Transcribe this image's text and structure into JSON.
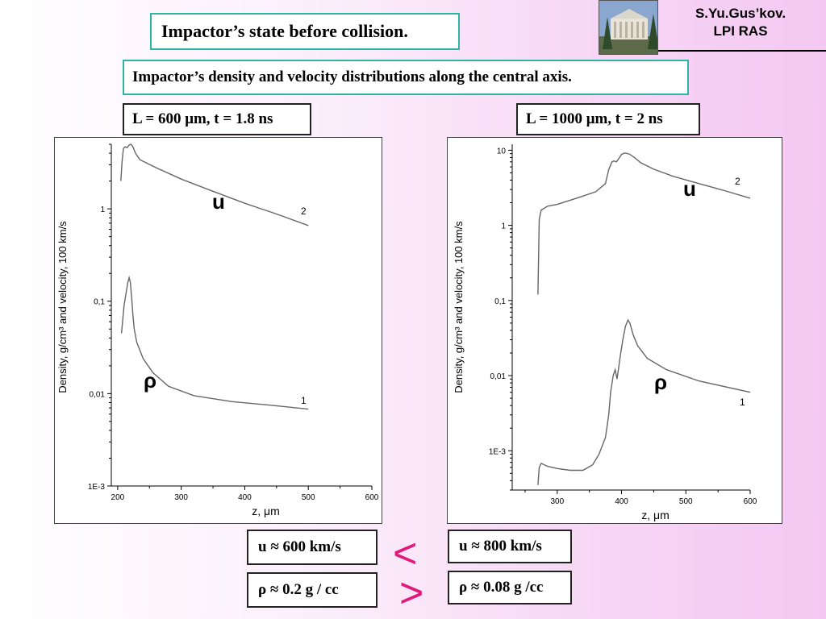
{
  "slide": {
    "title": "Impactor’s state before collision.",
    "subtitle": "Impactor’s density and velocity distributions along the central axis.",
    "author_line1": "S.Yu.Gus’kov.",
    "author_line2": "LPI RAS",
    "param_left": "L = 600 μm, t = 1.8 ns",
    "param_right": "L = 1000 μm, t = 2 ns",
    "u_left": "u ≈ 600 km/s",
    "u_right": "u ≈ 800 km/s",
    "rho_left": "ρ ≈ 0.2 g / cc",
    "rho_right": "ρ ≈ 0.08 g /cc",
    "compare_u": "<",
    "compare_rho": ">"
  },
  "colors": {
    "frame_teal": "#2fb3a3",
    "comparison": "#e0197a",
    "curve": "#666666"
  },
  "icons": {
    "logo": "building-photo-icon"
  },
  "chart_data": [
    {
      "type": "line",
      "title": "",
      "xlabel": "z, μm",
      "ylabel": "Density, g/cm³ and velocity, 100 km/s",
      "y_scale": "log",
      "xlim": [
        190,
        600
      ],
      "ylim": [
        0.001,
        5
      ],
      "xticks": [
        200,
        300,
        400,
        500,
        600
      ],
      "yticks": [
        {
          "value": 0.001,
          "label": "1E-3"
        },
        {
          "value": 0.01,
          "label": "0,01"
        },
        {
          "value": 0.1,
          "label": "0,1"
        },
        {
          "value": 1,
          "label": "1"
        }
      ],
      "series": [
        {
          "name": "1",
          "label": "ρ",
          "x": [
            206,
            210,
            213,
            216,
            218,
            220,
            222,
            224,
            226,
            230,
            240,
            255,
            280,
            320,
            380,
            440,
            500
          ],
          "y": [
            0.045,
            0.09,
            0.12,
            0.16,
            0.18,
            0.16,
            0.11,
            0.07,
            0.05,
            0.036,
            0.024,
            0.017,
            0.012,
            0.0095,
            0.0082,
            0.0075,
            0.0068
          ]
        },
        {
          "name": "2",
          "label": "u",
          "x": [
            205,
            207,
            209,
            212,
            215,
            218,
            221,
            224,
            228,
            235,
            260,
            300,
            350,
            400,
            450,
            500
          ],
          "y": [
            2.0,
            3.3,
            4.5,
            4.7,
            4.6,
            4.9,
            5.0,
            4.7,
            4.0,
            3.4,
            2.8,
            2.1,
            1.55,
            1.15,
            0.88,
            0.66
          ]
        }
      ]
    },
    {
      "type": "line",
      "title": "",
      "xlabel": "z, μm",
      "ylabel": "Density, g/cm³ and velocity, 100 km/s",
      "y_scale": "log",
      "xlim": [
        230,
        600
      ],
      "ylim": [
        0.0003,
        12
      ],
      "xticks": [
        300,
        400,
        500,
        600
      ],
      "yticks": [
        {
          "value": 0.001,
          "label": "1E-3"
        },
        {
          "value": 0.01,
          "label": "0,01"
        },
        {
          "value": 0.1,
          "label": "0,1"
        },
        {
          "value": 1,
          "label": "1"
        },
        {
          "value": 10,
          "label": "10"
        }
      ],
      "series": [
        {
          "name": "1",
          "label": "ρ",
          "x": [
            270,
            272,
            275,
            285,
            300,
            320,
            340,
            355,
            365,
            375,
            380,
            383,
            387,
            390,
            393,
            395,
            398,
            402,
            406,
            410,
            413,
            418,
            425,
            440,
            470,
            520,
            600
          ],
          "y": [
            0.00035,
            0.0006,
            0.00068,
            0.00062,
            0.00058,
            0.00055,
            0.00055,
            0.00065,
            0.0009,
            0.0015,
            0.003,
            0.006,
            0.01,
            0.012,
            0.009,
            0.012,
            0.018,
            0.03,
            0.045,
            0.055,
            0.05,
            0.035,
            0.025,
            0.017,
            0.012,
            0.0085,
            0.006
          ]
        },
        {
          "name": "2",
          "label": "u",
          "x": [
            270,
            272,
            275,
            285,
            300,
            330,
            360,
            375,
            380,
            385,
            388,
            392,
            396,
            400,
            405,
            412,
            420,
            430,
            450,
            480,
            520,
            560,
            600
          ],
          "y": [
            0.12,
            1.2,
            1.6,
            1.8,
            1.9,
            2.3,
            2.8,
            3.6,
            5.5,
            7.0,
            7.2,
            7.0,
            7.8,
            8.8,
            9.2,
            8.9,
            8.0,
            6.8,
            5.6,
            4.5,
            3.6,
            2.9,
            2.3
          ]
        }
      ]
    }
  ]
}
